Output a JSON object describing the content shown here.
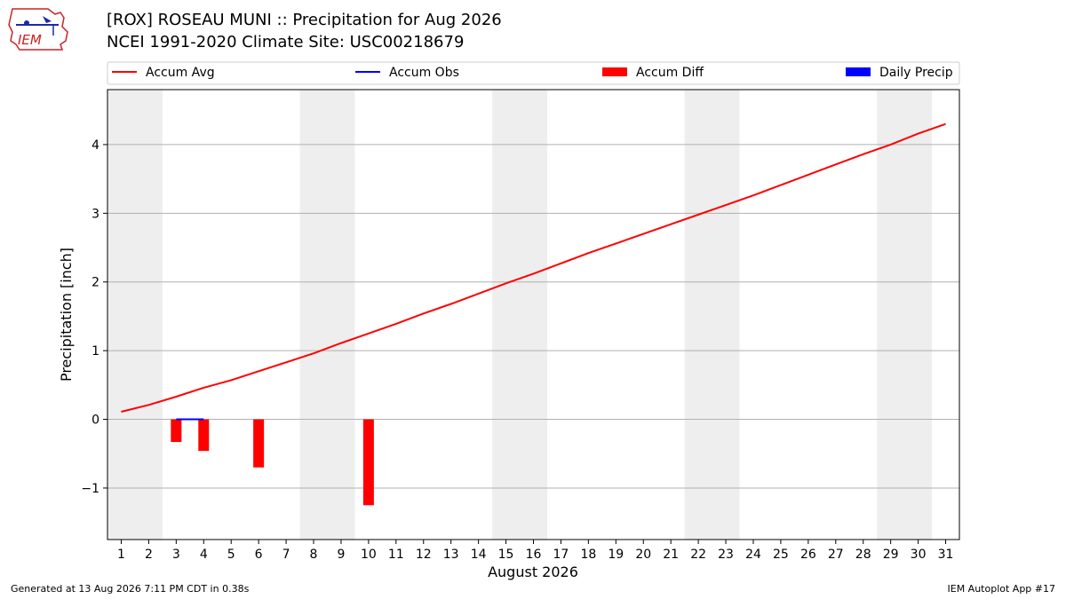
{
  "header": {
    "title_line1": "[ROX] ROSEAU MUNI :: Precipitation for Aug 2026",
    "title_line2": "NCEI 1991-2020 Climate Site: USC00218679",
    "logo_text": "IEM"
  },
  "footer": {
    "left": "Generated at 13 Aug 2026 7:11 PM CDT in 0.38s",
    "right": "IEM Autoplot App #17"
  },
  "colors": {
    "accum_avg": "#ff0000",
    "accum_obs": "#0000ff",
    "accum_diff": "#ff0000",
    "daily_precip": "#0000ff",
    "weekend_shade": "#eeeeee",
    "grid": "#b0b0b0"
  },
  "chart_data": {
    "type": "line",
    "xlabel": "August 2026",
    "ylabel": "Precipitation [inch]",
    "ylim": [
      -1.75,
      4.8
    ],
    "xlim": [
      0.5,
      31.5
    ],
    "x_ticks": [
      1,
      2,
      3,
      4,
      5,
      6,
      7,
      8,
      9,
      10,
      11,
      12,
      13,
      14,
      15,
      16,
      17,
      18,
      19,
      20,
      21,
      22,
      23,
      24,
      25,
      26,
      27,
      28,
      29,
      30,
      31
    ],
    "y_ticks": [
      -1,
      0,
      1,
      2,
      3,
      4
    ],
    "y_tick_labels": [
      "−1",
      "0",
      "1",
      "2",
      "3",
      "4"
    ],
    "grid": "horizontal",
    "legend_position": "top",
    "weekend_spans": [
      [
        1,
        2
      ],
      [
        8,
        9
      ],
      [
        15,
        16
      ],
      [
        22,
        23
      ],
      [
        29,
        30
      ]
    ],
    "legend": [
      {
        "label": "Accum Avg",
        "kind": "line",
        "color": "#ff0000"
      },
      {
        "label": "Accum Obs",
        "kind": "line",
        "color": "#0000ff"
      },
      {
        "label": "Accum Diff",
        "kind": "patch",
        "color": "#ff0000"
      },
      {
        "label": "Daily Precip",
        "kind": "patch",
        "color": "#0000ff"
      }
    ],
    "series": [
      {
        "name": "Accum Avg",
        "type": "line",
        "x": [
          1,
          2,
          3,
          4,
          5,
          6,
          7,
          8,
          9,
          10,
          11,
          12,
          13,
          14,
          15,
          16,
          17,
          18,
          19,
          20,
          21,
          22,
          23,
          24,
          25,
          26,
          27,
          28,
          29,
          30,
          31
        ],
        "values": [
          0.11,
          0.21,
          0.33,
          0.46,
          0.57,
          0.7,
          0.83,
          0.96,
          1.11,
          1.25,
          1.39,
          1.54,
          1.68,
          1.83,
          1.98,
          2.12,
          2.27,
          2.42,
          2.56,
          2.7,
          2.84,
          2.98,
          3.12,
          3.26,
          3.41,
          3.56,
          3.71,
          3.86,
          4.0,
          4.16,
          4.3
        ]
      },
      {
        "name": "Accum Obs",
        "type": "line",
        "x": [
          3,
          4
        ],
        "values": [
          0.0,
          0.0
        ]
      },
      {
        "name": "Accum Diff",
        "type": "bar",
        "x": [
          3,
          4,
          6,
          10
        ],
        "values": [
          -0.33,
          -0.46,
          -0.7,
          -1.25
        ]
      },
      {
        "name": "Daily Precip",
        "type": "bar",
        "x": [],
        "values": []
      }
    ]
  }
}
